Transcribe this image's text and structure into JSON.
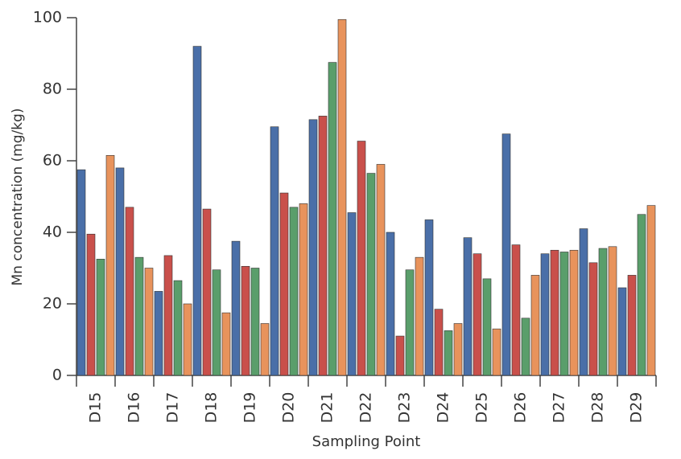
{
  "chart_data": {
    "type": "bar",
    "x_label": "Sampling Point",
    "y_label": "Mn concentration (mg/kg)",
    "categories": [
      "D15",
      "D16",
      "D17",
      "D18",
      "D19",
      "D20",
      "D21",
      "D22",
      "D23",
      "D24",
      "D25",
      "D26",
      "D27",
      "D28",
      "D29"
    ],
    "series": [
      {
        "color": "#4a6fa8",
        "values": [
          57.5,
          58,
          23.5,
          92,
          37.5,
          69.5,
          71.5,
          45.5,
          40,
          43.5,
          38.5,
          67.5,
          34,
          41,
          24.5
        ]
      },
      {
        "color": "#c9504b",
        "values": [
          39.5,
          47,
          33.5,
          46.5,
          30.5,
          51,
          72.5,
          65.5,
          11,
          18.5,
          34,
          36.5,
          35,
          31.5,
          28
        ]
      },
      {
        "color": "#5a9e6b",
        "values": [
          32.5,
          33,
          26.5,
          29.5,
          30,
          47,
          87.5,
          56.5,
          29.5,
          12.5,
          27,
          16,
          34.5,
          35.5,
          45
        ]
      },
      {
        "color": "#e8935c",
        "values": [
          61.5,
          30,
          20,
          17.5,
          14.5,
          48,
          99.5,
          59,
          33,
          14.5,
          13,
          28,
          35,
          36,
          47.5
        ]
      }
    ],
    "ylim": [
      0,
      100
    ],
    "yticks": [
      0,
      20,
      40,
      60,
      80,
      100
    ],
    "grid": false
  }
}
